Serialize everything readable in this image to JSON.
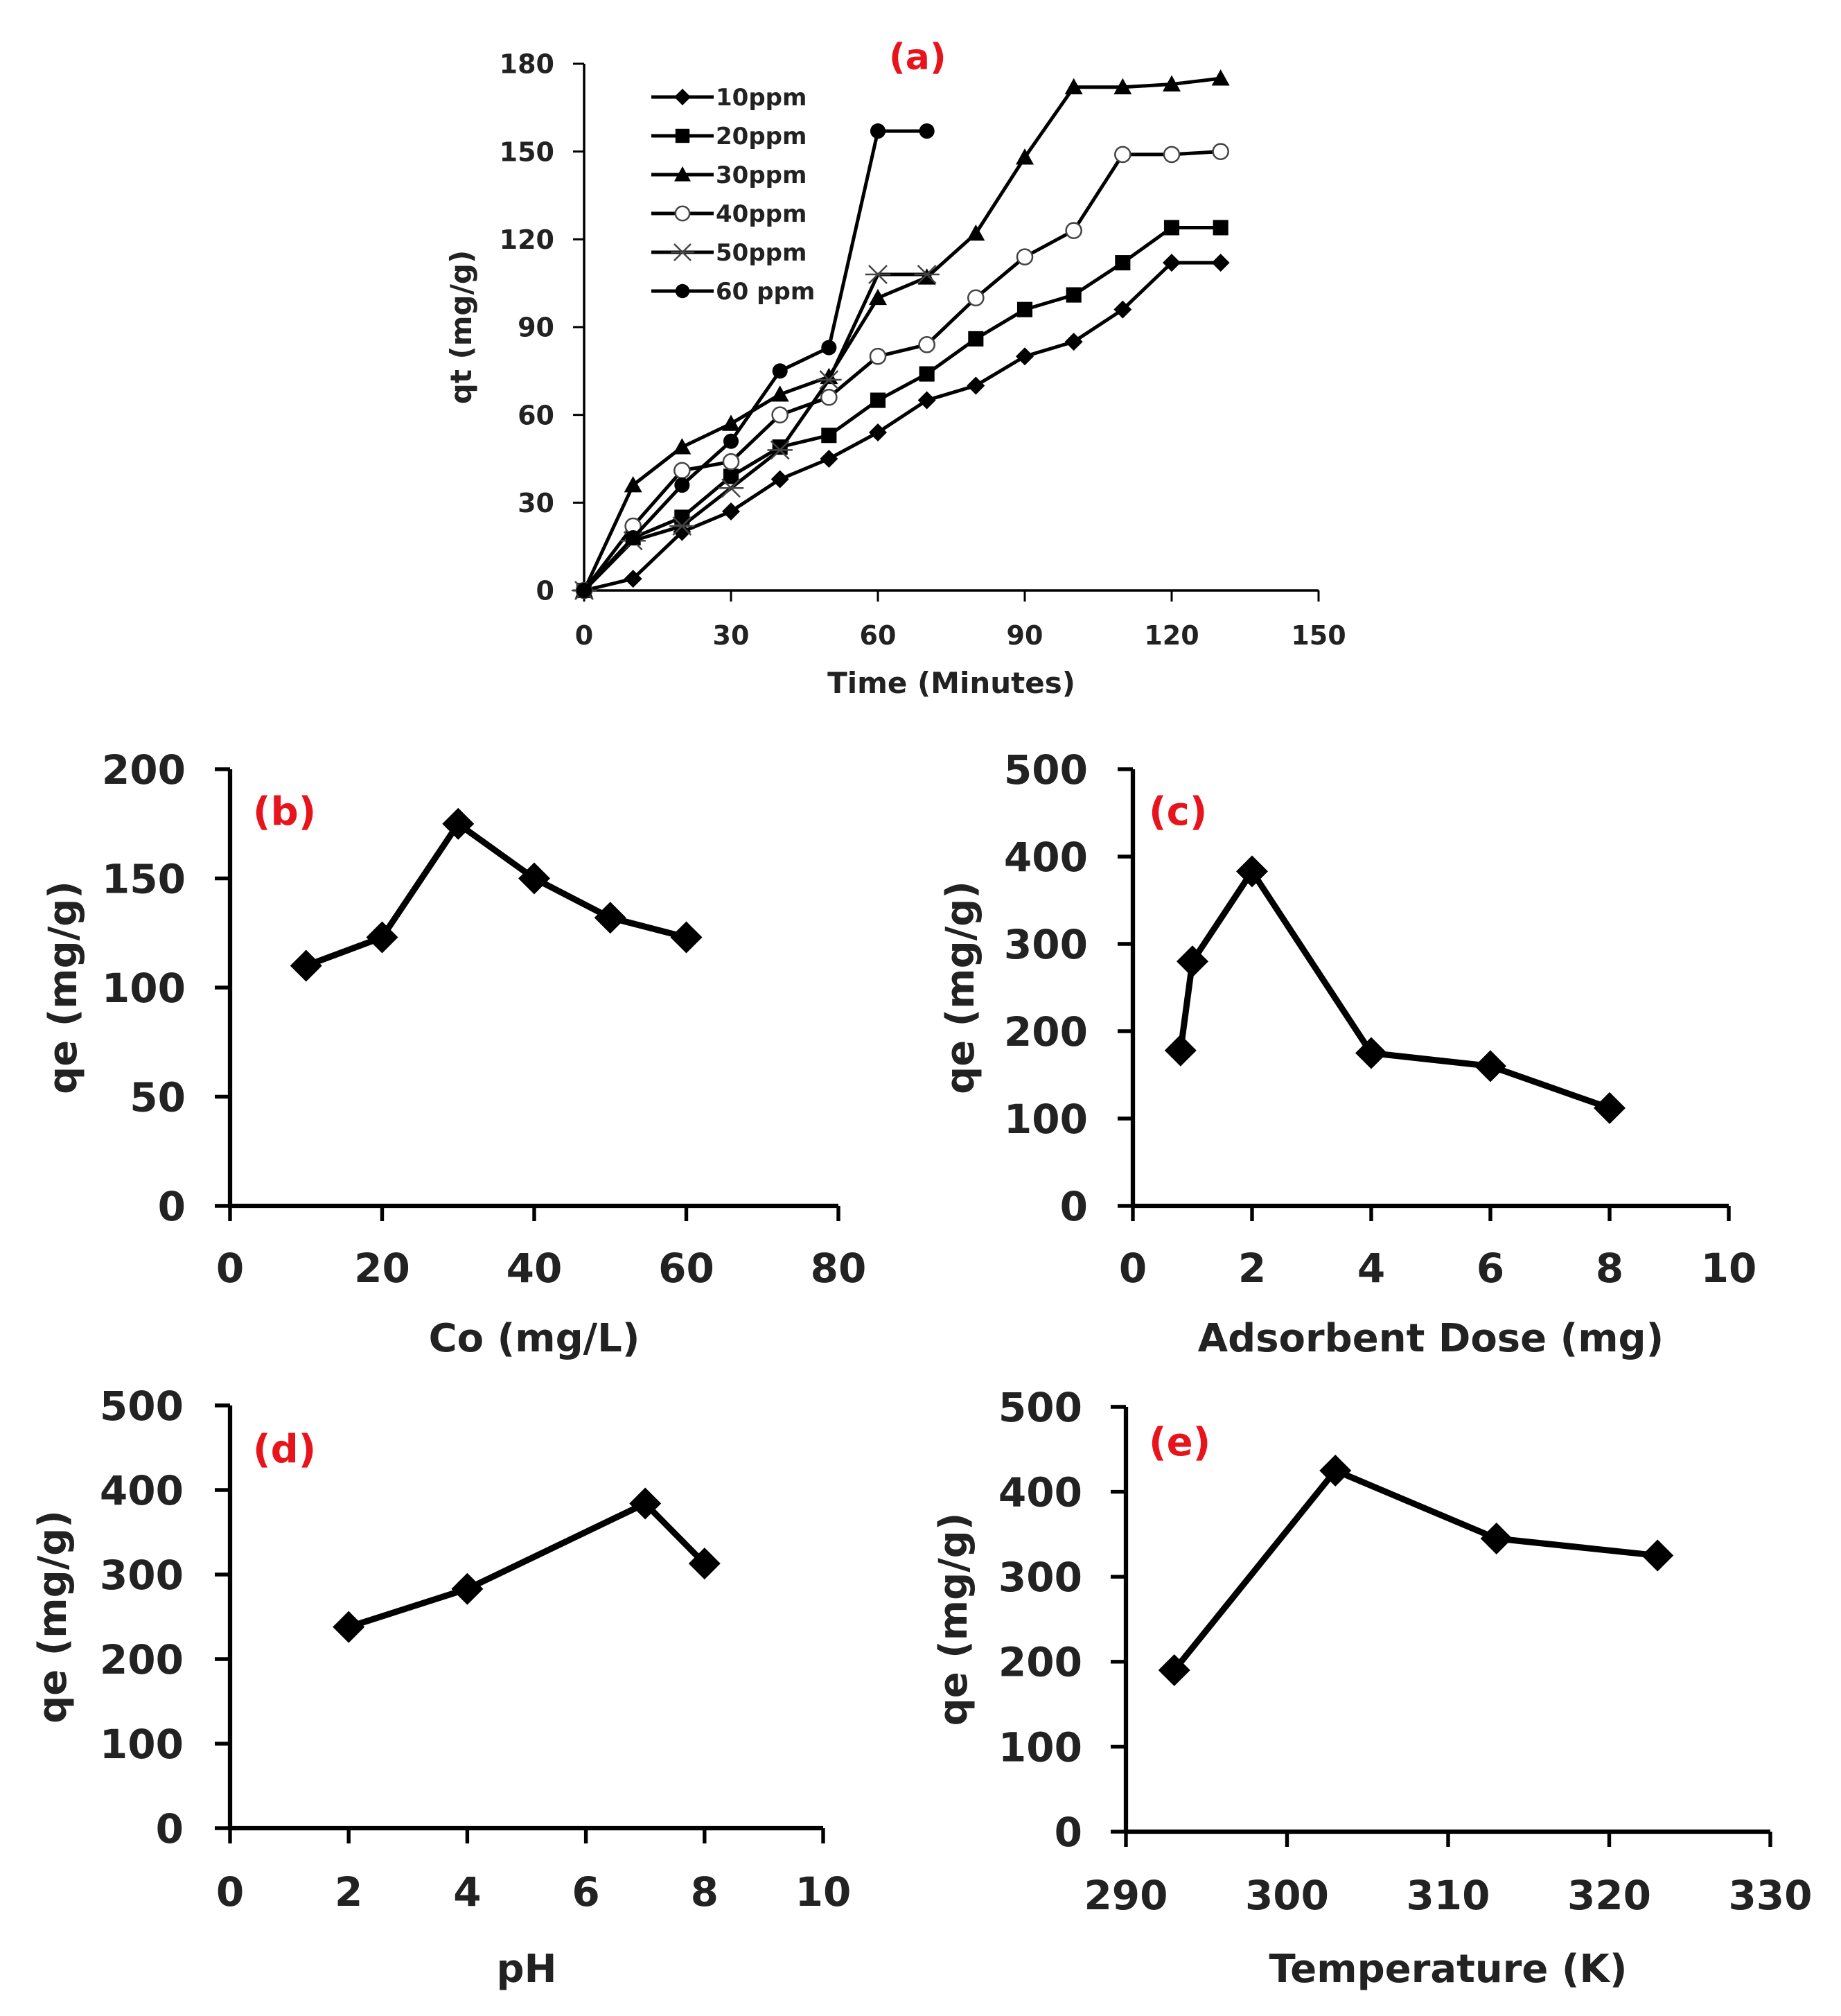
{
  "colors": {
    "panel_label": "#e8141c",
    "line": "#000000",
    "text": "#222222"
  },
  "chart_data": [
    {
      "panel": "(a)",
      "type": "line",
      "xlabel": "Time (Minutes)",
      "ylabel": "qt (mg/g)",
      "xlim": [
        0,
        150
      ],
      "ylim": [
        0,
        180
      ],
      "xticks": [
        "0",
        "30",
        "60",
        "90",
        "120",
        "150"
      ],
      "yticks": [
        "0",
        "30",
        "60",
        "90",
        "120",
        "150",
        "180"
      ],
      "legend_position": "top-left",
      "series": [
        {
          "name": "10ppm",
          "marker": "diamond",
          "x": [
            0,
            10,
            20,
            30,
            40,
            50,
            60,
            70,
            80,
            90,
            100,
            110,
            120,
            130
          ],
          "y": [
            0,
            4,
            20,
            27,
            38,
            45,
            54,
            65,
            70,
            80,
            85,
            96,
            112,
            112
          ]
        },
        {
          "name": "20ppm",
          "marker": "square",
          "x": [
            0,
            10,
            20,
            30,
            40,
            50,
            60,
            70,
            80,
            90,
            100,
            110,
            120,
            130
          ],
          "y": [
            0,
            18,
            25,
            39,
            49,
            53,
            65,
            74,
            86,
            96,
            101,
            112,
            124,
            124
          ]
        },
        {
          "name": "30ppm",
          "marker": "triangle",
          "x": [
            0,
            10,
            20,
            30,
            40,
            50,
            60,
            70,
            80,
            90,
            100,
            110,
            120,
            130
          ],
          "y": [
            0,
            36,
            49,
            57,
            67,
            73,
            100,
            107,
            122,
            148,
            172,
            172,
            173,
            175
          ]
        },
        {
          "name": "40ppm",
          "marker": "circle-open",
          "x": [
            0,
            10,
            20,
            30,
            40,
            50,
            60,
            70,
            80,
            90,
            100,
            110,
            120,
            130
          ],
          "y": [
            0,
            22,
            41,
            44,
            60,
            66,
            80,
            84,
            100,
            114,
            123,
            149,
            149,
            150
          ]
        },
        {
          "name": "50ppm",
          "marker": "star",
          "x": [
            0,
            10,
            20,
            30,
            40,
            50,
            60,
            70
          ],
          "y": [
            0,
            17,
            22,
            35,
            48,
            72,
            108,
            108
          ]
        },
        {
          "name": "60 ppm",
          "marker": "circle",
          "x": [
            0,
            10,
            20,
            30,
            40,
            50,
            60,
            70
          ],
          "y": [
            0,
            18,
            36,
            51,
            75,
            83,
            157,
            157
          ]
        }
      ]
    },
    {
      "panel": "(b)",
      "type": "line",
      "xlabel": "Co (mg/L)",
      "ylabel": "qe (mg/g)",
      "xlim": [
        0,
        80
      ],
      "ylim": [
        0,
        200
      ],
      "xticks": [
        "0",
        "20",
        "40",
        "60",
        "80"
      ],
      "yticks": [
        "0",
        "50",
        "100",
        "150",
        "200"
      ],
      "series": [
        {
          "name": "qe",
          "marker": "diamond",
          "x": [
            10,
            20,
            30,
            40,
            50,
            60
          ],
          "y": [
            110,
            123,
            175,
            150,
            132,
            123
          ]
        }
      ]
    },
    {
      "panel": "(c)",
      "type": "line",
      "xlabel": "Adsorbent Dose (mg)",
      "ylabel": "qe (mg/g)",
      "xlim": [
        0,
        10
      ],
      "ylim": [
        0,
        500
      ],
      "xticks": [
        "0",
        "2",
        "4",
        "6",
        "8",
        "10"
      ],
      "yticks": [
        "0",
        "100",
        "200",
        "300",
        "400",
        "500"
      ],
      "series": [
        {
          "name": "qe",
          "marker": "diamond",
          "x": [
            0.8,
            1,
            2,
            4,
            6,
            8
          ],
          "y": [
            178,
            280,
            383,
            175,
            160,
            112
          ]
        }
      ]
    },
    {
      "panel": "(d)",
      "type": "line",
      "xlabel": "pH",
      "ylabel": "qe (mg/g)",
      "xlim": [
        0,
        10
      ],
      "ylim": [
        0,
        500
      ],
      "xticks": [
        "0",
        "2",
        "4",
        "6",
        "8",
        "10"
      ],
      "yticks": [
        "0",
        "100",
        "200",
        "300",
        "400",
        "500"
      ],
      "series": [
        {
          "name": "qe",
          "marker": "diamond",
          "x": [
            2,
            4,
            7,
            8
          ],
          "y": [
            238,
            283,
            384,
            313
          ]
        }
      ]
    },
    {
      "panel": "(e)",
      "type": "line",
      "xlabel": "Temperature (K)",
      "ylabel": "qe (mg/g)",
      "xlim": [
        290,
        330
      ],
      "ylim": [
        0,
        500
      ],
      "xticks": [
        "290",
        "300",
        "310",
        "320",
        "330"
      ],
      "yticks": [
        "0",
        "100",
        "200",
        "300",
        "400",
        "500"
      ],
      "series": [
        {
          "name": "qe",
          "marker": "diamond",
          "x": [
            293,
            303,
            313,
            323
          ],
          "y": [
            190,
            425,
            345,
            325
          ]
        }
      ]
    }
  ]
}
